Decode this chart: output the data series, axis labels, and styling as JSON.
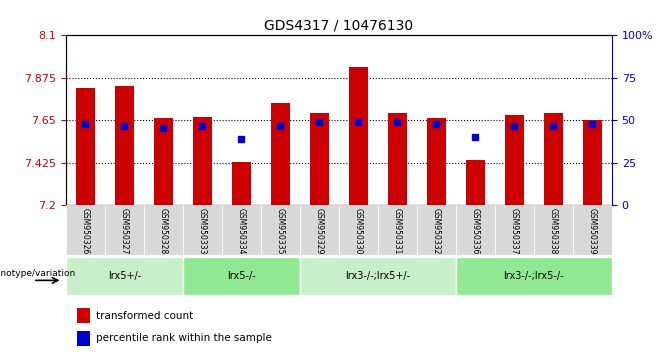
{
  "title": "GDS4317 / 10476130",
  "samples": [
    "GSM950326",
    "GSM950327",
    "GSM950328",
    "GSM950333",
    "GSM950334",
    "GSM950335",
    "GSM950329",
    "GSM950330",
    "GSM950331",
    "GSM950332",
    "GSM950336",
    "GSM950337",
    "GSM950338",
    "GSM950339"
  ],
  "red_values": [
    7.82,
    7.83,
    7.66,
    7.67,
    7.43,
    7.74,
    7.69,
    7.93,
    7.69,
    7.66,
    7.44,
    7.68,
    7.69,
    7.65
  ],
  "blue_values": [
    7.63,
    7.62,
    7.61,
    7.62,
    7.55,
    7.62,
    7.64,
    7.64,
    7.64,
    7.63,
    7.56,
    7.62,
    7.62,
    7.63
  ],
  "blue_pct": [
    47,
    46,
    45,
    46,
    34,
    46,
    48,
    48,
    48,
    47,
    35,
    46,
    46,
    47
  ],
  "ymin": 7.2,
  "ymax": 8.1,
  "yticks": [
    7.2,
    7.425,
    7.65,
    7.875,
    8.1
  ],
  "ytick_labels": [
    "7.2",
    "7.425",
    "7.65",
    "7.875",
    "8.1"
  ],
  "right_yticks": [
    0,
    25,
    50,
    75,
    100
  ],
  "right_ytick_labels": [
    "0",
    "25",
    "50",
    "75",
    "100%"
  ],
  "genotype_groups": [
    {
      "label": "lrx5+/-",
      "start": 0,
      "end": 2,
      "color": "#c8f0c8"
    },
    {
      "label": "lrx5-/-",
      "start": 3,
      "end": 5,
      "color": "#90e890"
    },
    {
      "label": "lrx3-/-;lrx5+/-",
      "start": 6,
      "end": 9,
      "color": "#c8f0c8"
    },
    {
      "label": "lrx3-/-;lrx5-/-",
      "start": 10,
      "end": 13,
      "color": "#90e890"
    }
  ],
  "legend_items": [
    {
      "label": "transformed count",
      "color": "#cc0000"
    },
    {
      "label": "percentile rank within the sample",
      "color": "#0000cc"
    }
  ],
  "bar_width": 0.5,
  "bar_color": "#cc0000",
  "dot_color": "#0000cc",
  "axis_color_left": "#cc0000",
  "axis_color_right": "#0000cc",
  "background_color": "#ffffff",
  "grid_color": "#000000"
}
